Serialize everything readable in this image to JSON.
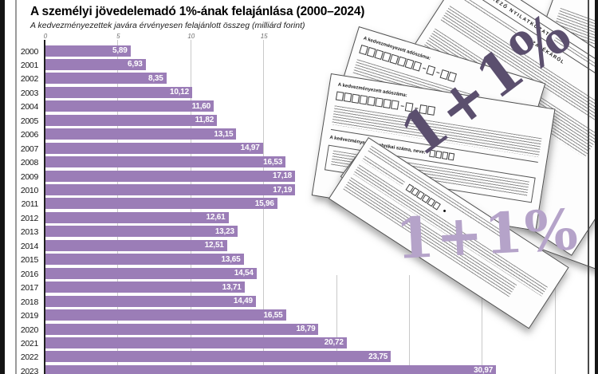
{
  "header": {
    "title": "A személyi jövedelemadó 1%-ának felajánlása (2000–2024)",
    "subtitle": "A kedvezményezettek javára érvényesen felajánlott összeg (milliárd forint)"
  },
  "chart_data": {
    "type": "bar",
    "orientation": "horizontal",
    "title": "A személyi jövedelemadó 1%-ának felajánlása (2000–2024)",
    "subtitle": "A kedvezményezettek javára érvényesen felajánlott összeg (milliárd forint)",
    "unit": "milliárd forint",
    "categories": [
      "2000",
      "2001",
      "2002",
      "2003",
      "2004",
      "2005",
      "2006",
      "2007",
      "2008",
      "2009",
      "2010",
      "2011",
      "2012",
      "2013",
      "2014",
      "2015",
      "2016",
      "2017",
      "2018",
      "2019",
      "2020",
      "2021",
      "2022",
      "2023"
    ],
    "values": [
      5.89,
      6.93,
      8.35,
      10.12,
      11.6,
      11.82,
      13.15,
      14.97,
      16.53,
      17.18,
      17.19,
      15.96,
      12.61,
      13.23,
      12.51,
      13.65,
      14.54,
      13.71,
      14.49,
      16.55,
      18.79,
      20.72,
      23.75,
      30.97
    ],
    "value_labels": [
      "5,89",
      "6,93",
      "8,35",
      "10,12",
      "11,60",
      "11,82",
      "13,15",
      "14,97",
      "16,53",
      "17,18",
      "17,19",
      "15,96",
      "12,61",
      "13,23",
      "12,51",
      "13,65",
      "14,54",
      "13,71",
      "14,49",
      "16,55",
      "18,79",
      "20,72",
      "23,75",
      "30,97"
    ],
    "x_axis": {
      "ticks_labeled": [
        0,
        5,
        10,
        15
      ],
      "grid_interval": 5,
      "max": 35
    },
    "xlabel": "",
    "ylabel": "",
    "grid": true,
    "bar_color": "#9b7db7"
  },
  "overlay": {
    "slogan_dark": "1+1%",
    "slogan_light": "1+1%",
    "form_headings": {
      "declaration_left": "RENDELKEZŐ NYILATKOZAT",
      "declaration_right": "SZÁZALÉKÁRÓL",
      "tax_id_label": "A kedvezményezett adószáma:",
      "tax_id_label2": "A kedvezményezett adószáma:",
      "tech_id_label": "A kedvezményezett technikai száma, neve:"
    },
    "colors": {
      "dark_purple": "#5b4f6e",
      "light_purple": "#b5a3c9",
      "bar": "#9b7db7"
    }
  }
}
